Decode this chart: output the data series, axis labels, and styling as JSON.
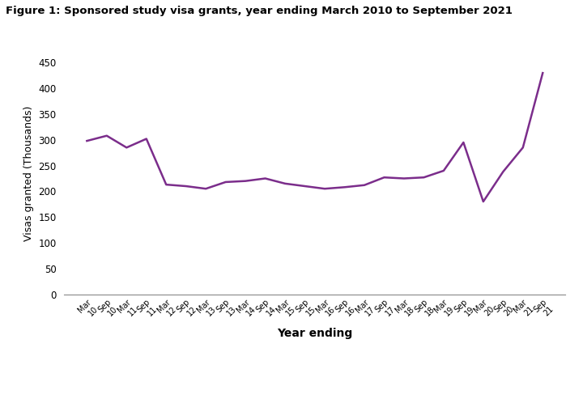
{
  "title": "Figure 1: Sponsored study visa grants, year ending March 2010 to September 2021",
  "xlabel": "Year ending",
  "ylabel": "Visas granted (Thousands)",
  "line_color": "#7B2D8B",
  "line_width": 1.8,
  "background_color": "#ffffff",
  "ylim": [
    0,
    470
  ],
  "yticks": [
    0,
    50,
    100,
    150,
    200,
    250,
    300,
    350,
    400,
    450
  ],
  "x_labels": [
    "Mar\n10",
    "Sep\n10",
    "Mar\n11",
    "Sep\n11",
    "Mar\n12",
    "Sep\n12",
    "Mar\n13",
    "Sep\n13",
    "Mar\n14",
    "Sep\n14",
    "Mar\n15",
    "Sep\n15",
    "Mar\n16",
    "Sep\n16",
    "Mar\n17",
    "Sep\n17",
    "Mar\n18",
    "Sep\n18",
    "Mar\n19",
    "Sep\n19",
    "Mar\n20",
    "Sep\n20",
    "Mar\n21",
    "Sep\n21"
  ],
  "values": [
    298,
    308,
    285,
    302,
    213,
    210,
    205,
    218,
    220,
    225,
    215,
    210,
    205,
    208,
    212,
    227,
    225,
    227,
    240,
    295,
    180,
    238,
    285,
    430
  ]
}
